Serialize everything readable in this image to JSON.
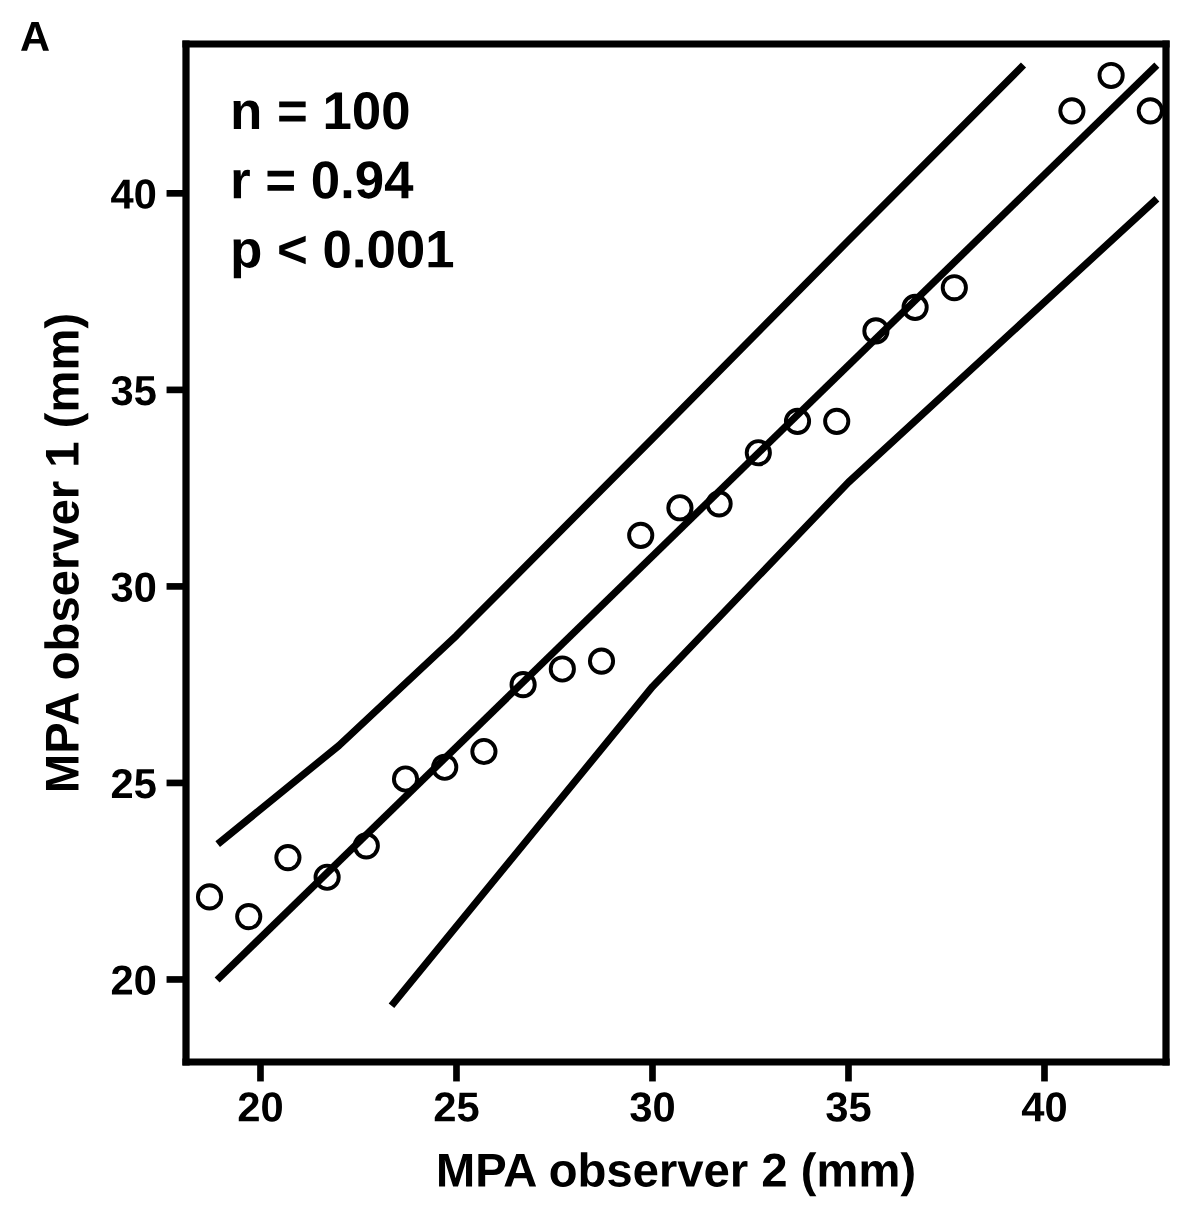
{
  "chart_data": {
    "type": "scatter",
    "xlabel": "MPA observer 2 (mm)",
    "ylabel": "MPA observer 1 (mm)",
    "annotations": [
      "A",
      "n = 100",
      "r = 0.94",
      "p < 0.001"
    ],
    "xlim": [
      18.1,
      43.1
    ],
    "ylim": [
      17.9,
      43.8
    ],
    "xticks": [
      20,
      25,
      30,
      35,
      40
    ],
    "yticks": [
      20,
      25,
      30,
      35,
      40
    ],
    "grid": false,
    "legend": false,
    "series": [
      {
        "color": "#000000",
        "marker": "circle",
        "x": [
          18.7,
          19.7,
          20.7,
          21.7,
          22.7,
          23.7,
          24.7,
          25.7,
          26.7,
          27.7,
          28.7,
          29.7,
          30.7,
          31.7,
          32.7,
          33.7,
          34.7,
          35.7,
          36.7,
          37.7,
          40.7,
          41.7,
          42.7
        ],
        "values": [
          22.1,
          21.6,
          23.1,
          22.6,
          23.4,
          25.1,
          25.4,
          25.8,
          27.5,
          27.9,
          28.1,
          31.3,
          32.0,
          32.1,
          33.4,
          34.2,
          34.2,
          36.5,
          37.1,
          37.6,
          42.1,
          43.0,
          42.1
        ]
      },
      {
        "type": "line",
        "color": "#000000",
        "marker": "none",
        "line_style": "solid",
        "x": [
          18.96,
          42.8
        ],
        "values": [
          20.05,
          43.2
        ]
      },
      {
        "type": "line",
        "color": "#000000",
        "marker": "none",
        "line_style": "solid",
        "x": [
          18.98,
          22,
          25,
          30,
          35,
          39.4
        ],
        "values": [
          23.5,
          25.95,
          28.75,
          33.76,
          38.8,
          43.2
        ]
      },
      {
        "type": "line",
        "color": "#000000",
        "marker": "none",
        "line_style": "solid",
        "x": [
          23.4,
          30,
          35,
          42.8
        ],
        "values": [
          19.4,
          27.45,
          32.65,
          39.8
        ]
      }
    ]
  }
}
